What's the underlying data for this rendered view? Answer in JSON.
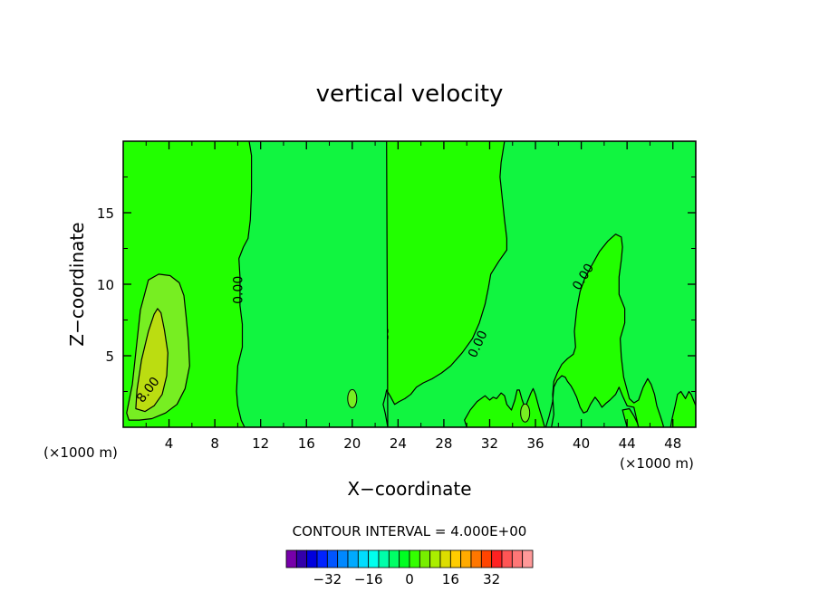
{
  "chart_data": {
    "type": "contour",
    "title": "vertical velocity",
    "xlabel": "X−coordinate",
    "ylabel": "Z−coordinate",
    "x_unit_left": "(×1000 m)",
    "x_unit_right": "(×1000 m)",
    "xlim": [
      0,
      50
    ],
    "ylim": [
      0,
      20
    ],
    "x_ticks": [
      4,
      8,
      12,
      16,
      20,
      24,
      28,
      32,
      36,
      40,
      44,
      48
    ],
    "y_ticks": [
      5,
      10,
      15
    ],
    "contour_interval_text": "CONTOUR INTERVAL = 4.000E+00",
    "contour_labels": [
      {
        "text": "8.00",
        "x": 2.2,
        "y": 2.6,
        "rot": -52
      },
      {
        "text": "0.00",
        "x": 10.1,
        "y": 9.6,
        "rot": -90
      },
      {
        "text": "0.00",
        "x": 31.0,
        "y": 5.8,
        "rot": -65
      },
      {
        "text": "0.00",
        "x": 40.2,
        "y": 10.5,
        "rot": -58
      }
    ],
    "background_color": "#22ff00",
    "regions": [
      {
        "name": "outer-positive-region",
        "level": 4,
        "color": "#77ee22",
        "points": [
          [
            0.3,
            1.0
          ],
          [
            0.8,
            3.0
          ],
          [
            1.2,
            6.0
          ],
          [
            1.5,
            8.2
          ],
          [
            2.2,
            10.3
          ],
          [
            3.1,
            10.7
          ],
          [
            4.1,
            10.6
          ],
          [
            4.9,
            10.1
          ],
          [
            5.3,
            9.2
          ],
          [
            5.5,
            7.7
          ],
          [
            5.7,
            6.0
          ],
          [
            5.8,
            4.3
          ],
          [
            5.4,
            2.7
          ],
          [
            4.7,
            1.6
          ],
          [
            3.7,
            1.0
          ],
          [
            2.5,
            0.6
          ],
          [
            1.4,
            0.5
          ],
          [
            0.5,
            0.5
          ]
        ]
      },
      {
        "name": "inner-positive-region",
        "level": 8,
        "color": "#bbdd11",
        "points": [
          [
            1.1,
            1.3
          ],
          [
            1.2,
            2.6
          ],
          [
            1.6,
            4.7
          ],
          [
            2.2,
            6.7
          ],
          [
            2.7,
            7.9
          ],
          [
            3.0,
            8.3
          ],
          [
            3.3,
            8.0
          ],
          [
            3.6,
            6.8
          ],
          [
            3.9,
            5.2
          ],
          [
            3.8,
            3.6
          ],
          [
            3.4,
            2.3
          ],
          [
            2.7,
            1.5
          ],
          [
            1.9,
            1.1
          ]
        ]
      },
      {
        "name": "negative-region",
        "level": -4,
        "color": "#00ff66",
        "points": [
          [
            17.6,
            7.9
          ],
          [
            17.8,
            6.9
          ],
          [
            18.1,
            5.9
          ],
          [
            18.2,
            4.9
          ],
          [
            18.5,
            3.7
          ],
          [
            18.7,
            2.6
          ],
          [
            18.6,
            1.4
          ],
          [
            19.1,
            1.1
          ],
          [
            20.3,
            1.0
          ],
          [
            21.1,
            1.0
          ],
          [
            22.0,
            1.1
          ],
          [
            22.3,
            1.6
          ],
          [
            22.2,
            2.7
          ],
          [
            22.5,
            3.9
          ],
          [
            22.7,
            5.1
          ],
          [
            23.1,
            6.1
          ],
          [
            23.1,
            6.9
          ],
          [
            22.7,
            7.7
          ],
          [
            22.3,
            8.6
          ],
          [
            21.8,
            8.2
          ],
          [
            21.2,
            7.4
          ],
          [
            20.5,
            7.2
          ],
          [
            19.7,
            7.3
          ],
          [
            19.1,
            7.5
          ],
          [
            18.4,
            7.9
          ],
          [
            18.0,
            7.8
          ]
        ]
      },
      {
        "name": "middle-zero-region",
        "level": 0,
        "color": "#11f540",
        "points": [
          [
            11.0,
            20
          ],
          [
            11.2,
            19.0
          ],
          [
            11.2,
            16.5
          ],
          [
            11.1,
            14.5
          ],
          [
            10.9,
            13.2
          ],
          [
            10.5,
            12.6
          ],
          [
            10.1,
            11.8
          ],
          [
            10.2,
            10.5
          ],
          [
            10.2,
            8.5
          ],
          [
            10.4,
            7.2
          ],
          [
            10.4,
            5.6
          ],
          [
            10.0,
            4.3
          ],
          [
            9.9,
            2.5
          ],
          [
            10.0,
            1.5
          ],
          [
            10.3,
            0.5
          ],
          [
            10.6,
            0
          ],
          [
            30,
            0
          ],
          [
            29.8,
            0.5
          ],
          [
            30.3,
            1.2
          ],
          [
            30.9,
            1.8
          ],
          [
            31.6,
            2.2
          ],
          [
            32.0,
            1.9
          ],
          [
            32.3,
            2.1
          ],
          [
            32.6,
            2.0
          ],
          [
            33.0,
            2.4
          ],
          [
            33.3,
            2.2
          ],
          [
            33.5,
            1.6
          ],
          [
            33.9,
            1.2
          ],
          [
            34.2,
            1.9
          ],
          [
            34.4,
            2.6
          ],
          [
            34.6,
            2.6
          ],
          [
            34.8,
            2.0
          ],
          [
            35.1,
            1.3
          ],
          [
            35.3,
            1.8
          ],
          [
            35.6,
            2.4
          ],
          [
            35.8,
            2.7
          ],
          [
            36.0,
            2.3
          ],
          [
            36.3,
            1.4
          ],
          [
            36.6,
            0.6
          ],
          [
            36.8,
            0
          ],
          [
            37.4,
            0
          ],
          [
            37.6,
            0.9
          ],
          [
            37.5,
            2.3
          ],
          [
            37.6,
            3.2
          ],
          [
            37.9,
            3.8
          ],
          [
            38.3,
            4.4
          ],
          [
            38.8,
            4.8
          ],
          [
            39.3,
            5.1
          ],
          [
            39.5,
            5.6
          ],
          [
            39.4,
            6.7
          ],
          [
            39.6,
            8.2
          ],
          [
            39.9,
            9.5
          ],
          [
            40.3,
            10.4
          ],
          [
            40.9,
            11.3
          ],
          [
            41.6,
            12.3
          ],
          [
            42.3,
            13.0
          ],
          [
            43.0,
            13.5
          ],
          [
            43.5,
            13.3
          ],
          [
            43.6,
            12.6
          ],
          [
            43.5,
            11.7
          ],
          [
            43.3,
            10.5
          ],
          [
            43.3,
            9.3
          ],
          [
            43.8,
            8.3
          ],
          [
            43.8,
            7.3
          ],
          [
            43.4,
            6.2
          ],
          [
            43.5,
            4.9
          ],
          [
            43.7,
            3.5
          ],
          [
            44.0,
            2.6
          ],
          [
            44.2,
            2.0
          ],
          [
            44.6,
            1.7
          ],
          [
            45.0,
            1.9
          ],
          [
            45.4,
            2.8
          ],
          [
            45.8,
            3.4
          ],
          [
            46.1,
            3.0
          ],
          [
            46.4,
            2.3
          ],
          [
            46.6,
            1.5
          ],
          [
            46.9,
            0.8
          ],
          [
            47.1,
            0.3
          ],
          [
            47.2,
            0
          ],
          [
            47.8,
            0
          ],
          [
            47.9,
            0.5
          ],
          [
            48.2,
            1.5
          ],
          [
            48.4,
            2.3
          ],
          [
            48.7,
            2.5
          ],
          [
            49.1,
            2.0
          ],
          [
            49.4,
            2.5
          ],
          [
            49.6,
            2.3
          ],
          [
            49.8,
            1.9
          ],
          [
            50,
            1.5
          ],
          [
            50,
            0
          ],
          [
            45,
            0
          ],
          [
            44.6,
            1.4
          ],
          [
            44.0,
            1.5
          ],
          [
            43.6,
            2.2
          ],
          [
            43.3,
            2.8
          ],
          [
            43.0,
            2.3
          ],
          [
            42.5,
            1.9
          ],
          [
            42.2,
            1.7
          ],
          [
            41.8,
            1.4
          ],
          [
            41.5,
            1.8
          ],
          [
            41.2,
            2.1
          ],
          [
            40.8,
            1.6
          ],
          [
            40.5,
            1.1
          ],
          [
            40.2,
            1.0
          ],
          [
            39.9,
            1.4
          ],
          [
            39.6,
            2.1
          ],
          [
            39.3,
            2.6
          ],
          [
            39.1,
            2.9
          ],
          [
            38.8,
            3.2
          ],
          [
            38.6,
            3.5
          ],
          [
            38.3,
            3.6
          ],
          [
            37.9,
            3.3
          ],
          [
            37.6,
            2.8
          ],
          [
            37.5,
            1.8
          ],
          [
            37.2,
            0.8
          ],
          [
            36.9,
            0
          ],
          [
            44,
            0
          ],
          [
            43.8,
            0.6
          ],
          [
            43.6,
            1.2
          ],
          [
            44.2,
            1.3
          ],
          [
            44.6,
            0.8
          ],
          [
            44.9,
            0.3
          ],
          [
            45,
            0
          ],
          [
            50,
            0
          ],
          [
            50,
            20
          ],
          [
            33.3,
            20
          ],
          [
            33.0,
            18.5
          ],
          [
            32.9,
            17.5
          ],
          [
            33.1,
            16.0
          ],
          [
            33.3,
            14.5
          ],
          [
            33.5,
            13.2
          ],
          [
            33.5,
            12.4
          ],
          [
            32.8,
            11.6
          ],
          [
            32.1,
            10.7
          ],
          [
            31.9,
            9.8
          ],
          [
            31.6,
            8.6
          ],
          [
            31.1,
            7.3
          ],
          [
            30.5,
            6.2
          ],
          [
            29.6,
            5.2
          ],
          [
            28.6,
            4.3
          ],
          [
            27.8,
            3.8
          ],
          [
            27.0,
            3.4
          ],
          [
            26.2,
            3.1
          ],
          [
            25.6,
            2.8
          ],
          [
            25.1,
            2.3
          ],
          [
            24.6,
            2.0
          ],
          [
            24.1,
            1.8
          ],
          [
            23.7,
            1.6
          ],
          [
            23.3,
            2.2
          ],
          [
            23.0,
            2.6
          ],
          [
            22.9,
            2.2
          ],
          [
            22.7,
            1.6
          ],
          [
            22.9,
            0.9
          ],
          [
            23.1,
            0
          ],
          [
            23,
            20
          ]
        ]
      }
    ],
    "colorbar": {
      "colors": [
        "#7700aa",
        "#3300aa",
        "#0000dd",
        "#0022ff",
        "#0055ff",
        "#0088ff",
        "#00aaff",
        "#00ddff",
        "#00ffee",
        "#00ffaa",
        "#00ff66",
        "#00ff22",
        "#33ff00",
        "#77ee00",
        "#aaee00",
        "#dddd00",
        "#ffcc00",
        "#ffaa00",
        "#ff7700",
        "#ff4400",
        "#ff2222",
        "#ff5555",
        "#ff7777",
        "#ff9999"
      ],
      "tick_labels": [
        "−32",
        "−16",
        "0",
        "16",
        "32"
      ],
      "tick_values": [
        -32,
        -16,
        0,
        16,
        32
      ],
      "min": -48,
      "max": 48
    }
  }
}
